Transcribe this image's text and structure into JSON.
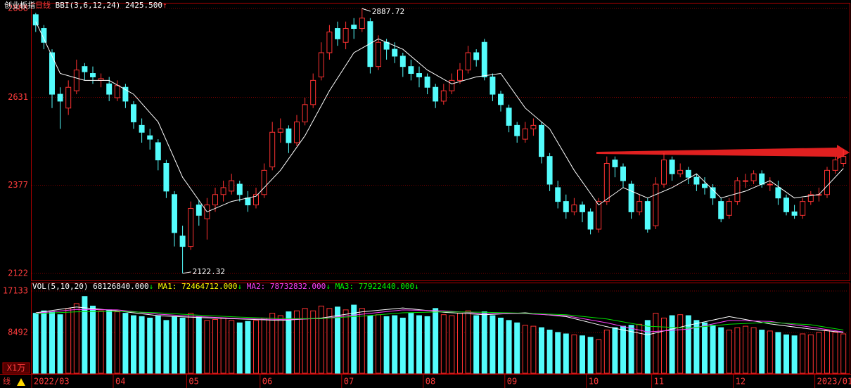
{
  "chart_data": {
    "type": "candlestick",
    "title": "创业板指",
    "period": "日线",
    "indicator": "BBI(3,6,12,24)",
    "indicator_value": {
      "value": 2425.5,
      "label": "2425.500"
    },
    "indicator_trend": "↑",
    "up_color": "#ff3232",
    "down_color": "#54fcfc",
    "ylim": [
      2122,
      2888
    ],
    "yticks": [
      2122,
      2377,
      2631,
      2888
    ],
    "open": [
      2870,
      2830,
      2760,
      2640,
      2600,
      2650,
      2720,
      2700,
      2680,
      2670,
      2630,
      2660,
      2610,
      2550,
      2520,
      2500,
      2440,
      2350,
      2230,
      2200,
      2320,
      2280,
      2320,
      2350,
      2360,
      2380,
      2340,
      2320,
      2350,
      2430,
      2530,
      2540,
      2500,
      2560,
      2610,
      2690,
      2760,
      2830,
      2790,
      2840,
      2830,
      2850,
      2720,
      2790,
      2770,
      2750,
      2720,
      2700,
      2690,
      2660,
      2620,
      2650,
      2680,
      2710,
      2760,
      2790,
      2690,
      2640,
      2600,
      2550,
      2510,
      2540,
      2550,
      2460,
      2370,
      2330,
      2300,
      2320,
      2300,
      2250,
      2330,
      2450,
      2430,
      2380,
      2300,
      2330,
      2260,
      2380,
      2450,
      2410,
      2420,
      2400,
      2380,
      2370,
      2330,
      2290,
      2330,
      2390,
      2390,
      2410,
      2380,
      2370,
      2340,
      2300,
      2290,
      2330,
      2350,
      2350,
      2420,
      2440
    ],
    "high": [
      2875,
      2840,
      2770,
      2660,
      2680,
      2740,
      2730,
      2720,
      2700,
      2690,
      2680,
      2670,
      2620,
      2570,
      2540,
      2510,
      2450,
      2360,
      2260,
      2330,
      2335,
      2340,
      2370,
      2390,
      2410,
      2390,
      2360,
      2370,
      2440,
      2560,
      2570,
      2550,
      2580,
      2630,
      2700,
      2790,
      2840,
      2850,
      2850,
      2860,
      2887.72,
      2860,
      2810,
      2800,
      2790,
      2760,
      2740,
      2720,
      2700,
      2670,
      2670,
      2700,
      2730,
      2780,
      2770,
      2800,
      2700,
      2650,
      2610,
      2560,
      2560,
      2570,
      2560,
      2470,
      2390,
      2350,
      2340,
      2330,
      2310,
      2340,
      2460,
      2460,
      2440,
      2390,
      2350,
      2340,
      2400,
      2470,
      2460,
      2440,
      2430,
      2410,
      2400,
      2380,
      2340,
      2340,
      2400,
      2410,
      2420,
      2420,
      2400,
      2390,
      2350,
      2320,
      2340,
      2360,
      2370,
      2430,
      2460,
      2480
    ],
    "low": [
      2820,
      2770,
      2600,
      2540,
      2580,
      2640,
      2680,
      2670,
      2660,
      2620,
      2620,
      2600,
      2540,
      2500,
      2480,
      2420,
      2340,
      2200,
      2122.32,
      2190,
      2260,
      2220,
      2300,
      2330,
      2350,
      2330,
      2300,
      2310,
      2340,
      2420,
      2500,
      2470,
      2490,
      2550,
      2600,
      2680,
      2740,
      2780,
      2770,
      2800,
      2820,
      2700,
      2710,
      2740,
      2730,
      2690,
      2680,
      2660,
      2640,
      2600,
      2610,
      2640,
      2670,
      2700,
      2720,
      2680,
      2620,
      2590,
      2530,
      2500,
      2500,
      2520,
      2440,
      2360,
      2310,
      2280,
      2290,
      2270,
      2235,
      2240,
      2320,
      2400,
      2370,
      2280,
      2290,
      2240,
      2250,
      2370,
      2390,
      2400,
      2380,
      2360,
      2350,
      2320,
      2270,
      2280,
      2320,
      2370,
      2380,
      2370,
      2360,
      2320,
      2290,
      2280,
      2280,
      2320,
      2330,
      2340,
      2410,
      2430
    ],
    "close": [
      2840,
      2790,
      2640,
      2620,
      2660,
      2710,
      2705,
      2690,
      2685,
      2640,
      2665,
      2620,
      2560,
      2530,
      2510,
      2450,
      2360,
      2240,
      2200,
      2310,
      2290,
      2320,
      2350,
      2370,
      2390,
      2350,
      2320,
      2350,
      2420,
      2530,
      2540,
      2500,
      2560,
      2610,
      2680,
      2760,
      2820,
      2800,
      2830,
      2830,
      2860,
      2720,
      2790,
      2770,
      2750,
      2720,
      2700,
      2690,
      2660,
      2620,
      2650,
      2680,
      2710,
      2760,
      2740,
      2690,
      2640,
      2610,
      2550,
      2520,
      2540,
      2550,
      2460,
      2380,
      2330,
      2300,
      2320,
      2300,
      2250,
      2330,
      2440,
      2430,
      2390,
      2300,
      2330,
      2250,
      2380,
      2450,
      2410,
      2420,
      2400,
      2380,
      2370,
      2340,
      2280,
      2330,
      2390,
      2390,
      2410,
      2380,
      2380,
      2340,
      2300,
      2290,
      2330,
      2350,
      2350,
      2420,
      2450,
      2460
    ],
    "bbi": {
      "name": "BBI",
      "color": "#ffffff",
      "x": [
        0,
        3,
        6,
        9,
        12,
        15,
        18,
        21,
        24,
        27,
        30,
        33,
        36,
        39,
        42,
        45,
        48,
        51,
        54,
        57,
        60,
        63,
        66,
        69,
        72,
        75,
        78,
        81,
        84,
        87,
        90,
        93,
        96,
        99
      ],
      "values": [
        2850,
        2700,
        2680,
        2680,
        2640,
        2560,
        2400,
        2300,
        2330,
        2345,
        2420,
        2520,
        2650,
        2760,
        2800,
        2770,
        2710,
        2670,
        2690,
        2700,
        2600,
        2540,
        2420,
        2320,
        2370,
        2340,
        2370,
        2410,
        2340,
        2360,
        2390,
        2340,
        2350,
        2425.5
      ]
    },
    "months": [
      {
        "index": 0,
        "label": "2022/03"
      },
      {
        "index": 10,
        "label": "04"
      },
      {
        "index": 19,
        "label": "05"
      },
      {
        "index": 28,
        "label": "06"
      },
      {
        "index": 38,
        "label": "07"
      },
      {
        "index": 48,
        "label": "08"
      },
      {
        "index": 58,
        "label": "09"
      },
      {
        "index": 68,
        "label": "10"
      },
      {
        "index": 76,
        "label": "11"
      },
      {
        "index": 86,
        "label": "12"
      },
      {
        "index": 96,
        "label": "2023/01"
      }
    ],
    "volume": {
      "unit": "X1万",
      "indicator": "VOL(5,10,20)",
      "indicator_value": {
        "value": 68126840,
        "label": "68126840.000"
      },
      "ylim": [
        0,
        17133
      ],
      "yticks": [
        8492,
        17133
      ],
      "values": [
        12500,
        13000,
        12800,
        12200,
        13500,
        14500,
        16000,
        14000,
        13000,
        13200,
        12800,
        12500,
        12000,
        11800,
        11500,
        12000,
        11000,
        11800,
        11500,
        12500,
        11800,
        11000,
        11200,
        11500,
        11000,
        10500,
        10800,
        11000,
        11500,
        12500,
        12000,
        12800,
        13000,
        13500,
        13000,
        14000,
        13500,
        13800,
        13200,
        14200,
        13500,
        12000,
        12200,
        11800,
        12000,
        11500,
        12500,
        12000,
        11800,
        13500,
        12200,
        12000,
        12500,
        13000,
        12000,
        12800,
        12000,
        11500,
        11000,
        10500,
        10000,
        9800,
        9500,
        9000,
        8500,
        8200,
        8000,
        7800,
        7500,
        7000,
        9000,
        9500,
        9800,
        10000,
        10200,
        11000,
        12500,
        11500,
        12000,
        12200,
        12000,
        11000,
        10500,
        10000,
        9500,
        9000,
        9500,
        9800,
        9500,
        9000,
        8800,
        8500,
        8000,
        7800,
        8200,
        8000,
        8500,
        9000,
        8500,
        8200
      ],
      "ma_x": [
        0,
        5,
        10,
        15,
        20,
        25,
        30,
        35,
        40,
        45,
        50,
        55,
        60,
        65,
        70,
        75,
        80,
        85,
        90,
        95,
        99
      ],
      "series": [
        {
          "name": "MA1:",
          "legend": {
            "value": 72464712,
            "label": "72464712.000"
          },
          "color": "#ffff00",
          "line_color": "#ffffff",
          "values": [
            12600,
            13800,
            13000,
            12000,
            11600,
            11300,
            11000,
            11500,
            12800,
            13600,
            12700,
            12200,
            12600,
            11800,
            9700,
            8000,
            10000,
            11800,
            10300,
            9200,
            8500
          ]
        },
        {
          "name": "MA2:",
          "legend": {
            "value": 78732832,
            "label": "78732832.000"
          },
          "color": "#ff40ff",
          "line_color": "#ff40ff",
          "values": [
            12500,
            13300,
            13200,
            12300,
            11800,
            11400,
            11200,
            11400,
            12300,
            13200,
            13000,
            12400,
            12400,
            12000,
            10500,
            8600,
            9200,
            11000,
            10800,
            9600,
            8600
          ]
        },
        {
          "name": "MA3:",
          "legend": {
            "value": 77922440,
            "label": "77922440.000"
          },
          "color": "#00ff00",
          "line_color": "#00e000",
          "values": [
            12400,
            12800,
            12900,
            12600,
            12100,
            11700,
            11400,
            11400,
            11900,
            12600,
            12800,
            12700,
            12500,
            12200,
            11300,
            9800,
            9400,
            10200,
            10600,
            10100,
            9000
          ]
        }
      ],
      "trend": "↓"
    },
    "footer_label": "线"
  }
}
